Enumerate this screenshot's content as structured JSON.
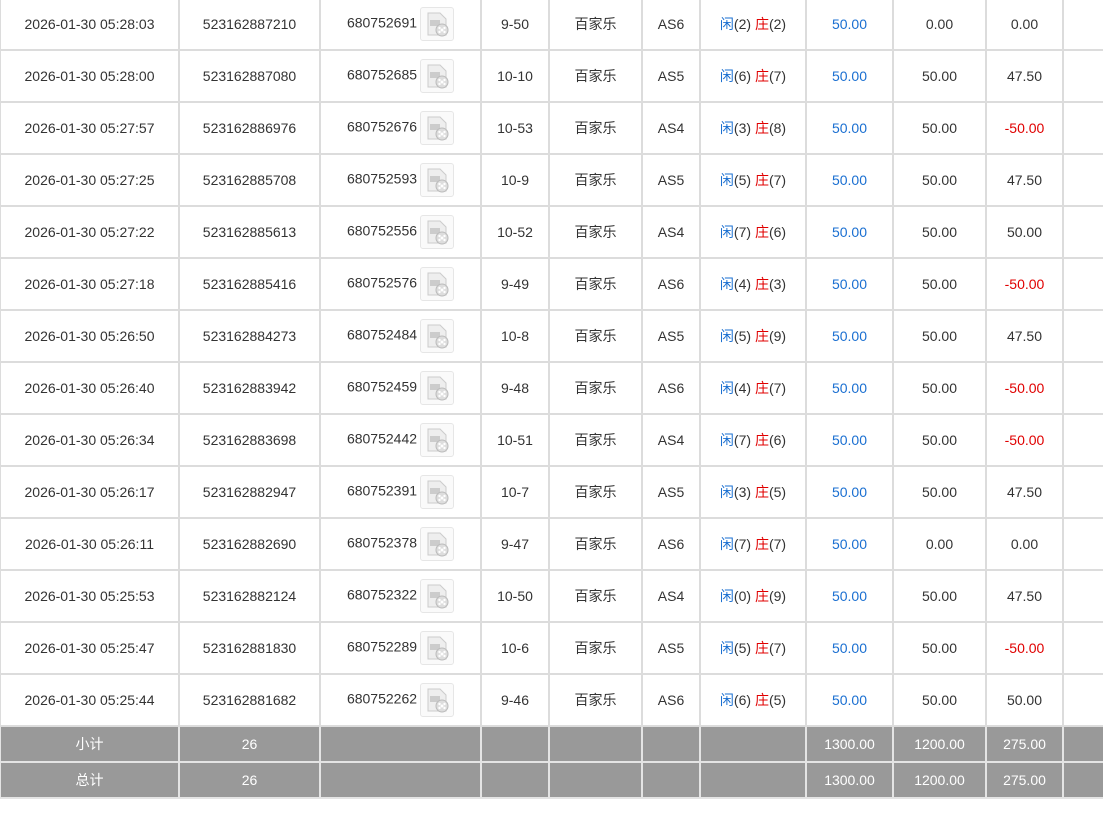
{
  "rows": [
    {
      "time": "2026-01-30 05:28:03",
      "bet_id": "523162887210",
      "round_id": "680752691",
      "shoe": "9-50",
      "game": "百家乐",
      "table": "AS6",
      "player": "(2)",
      "banker": "(2)",
      "bet": "50.00",
      "valid": "0.00",
      "win": "0.00"
    },
    {
      "time": "2026-01-30 05:28:00",
      "bet_id": "523162887080",
      "round_id": "680752685",
      "shoe": "10-10",
      "game": "百家乐",
      "table": "AS5",
      "player": "(6)",
      "banker": "(7)",
      "bet": "50.00",
      "valid": "50.00",
      "win": "47.50"
    },
    {
      "time": "2026-01-30 05:27:57",
      "bet_id": "523162886976",
      "round_id": "680752676",
      "shoe": "10-53",
      "game": "百家乐",
      "table": "AS4",
      "player": "(3)",
      "banker": "(8)",
      "bet": "50.00",
      "valid": "50.00",
      "win": "-50.00"
    },
    {
      "time": "2026-01-30 05:27:25",
      "bet_id": "523162885708",
      "round_id": "680752593",
      "shoe": "10-9",
      "game": "百家乐",
      "table": "AS5",
      "player": "(5)",
      "banker": "(7)",
      "bet": "50.00",
      "valid": "50.00",
      "win": "47.50"
    },
    {
      "time": "2026-01-30 05:27:22",
      "bet_id": "523162885613",
      "round_id": "680752556",
      "shoe": "10-52",
      "game": "百家乐",
      "table": "AS4",
      "player": "(7)",
      "banker": "(6)",
      "bet": "50.00",
      "valid": "50.00",
      "win": "50.00"
    },
    {
      "time": "2026-01-30 05:27:18",
      "bet_id": "523162885416",
      "round_id": "680752576",
      "shoe": "9-49",
      "game": "百家乐",
      "table": "AS6",
      "player": "(4)",
      "banker": "(3)",
      "bet": "50.00",
      "valid": "50.00",
      "win": "-50.00"
    },
    {
      "time": "2026-01-30 05:26:50",
      "bet_id": "523162884273",
      "round_id": "680752484",
      "shoe": "10-8",
      "game": "百家乐",
      "table": "AS5",
      "player": "(5)",
      "banker": "(9)",
      "bet": "50.00",
      "valid": "50.00",
      "win": "47.50"
    },
    {
      "time": "2026-01-30 05:26:40",
      "bet_id": "523162883942",
      "round_id": "680752459",
      "shoe": "9-48",
      "game": "百家乐",
      "table": "AS6",
      "player": "(4)",
      "banker": "(7)",
      "bet": "50.00",
      "valid": "50.00",
      "win": "-50.00"
    },
    {
      "time": "2026-01-30 05:26:34",
      "bet_id": "523162883698",
      "round_id": "680752442",
      "shoe": "10-51",
      "game": "百家乐",
      "table": "AS4",
      "player": "(7)",
      "banker": "(6)",
      "bet": "50.00",
      "valid": "50.00",
      "win": "-50.00"
    },
    {
      "time": "2026-01-30 05:26:17",
      "bet_id": "523162882947",
      "round_id": "680752391",
      "shoe": "10-7",
      "game": "百家乐",
      "table": "AS5",
      "player": "(3)",
      "banker": "(5)",
      "bet": "50.00",
      "valid": "50.00",
      "win": "47.50"
    },
    {
      "time": "2026-01-30 05:26:11",
      "bet_id": "523162882690",
      "round_id": "680752378",
      "shoe": "9-47",
      "game": "百家乐",
      "table": "AS6",
      "player": "(7)",
      "banker": "(7)",
      "bet": "50.00",
      "valid": "0.00",
      "win": "0.00"
    },
    {
      "time": "2026-01-30 05:25:53",
      "bet_id": "523162882124",
      "round_id": "680752322",
      "shoe": "10-50",
      "game": "百家乐",
      "table": "AS4",
      "player": "(0)",
      "banker": "(9)",
      "bet": "50.00",
      "valid": "50.00",
      "win": "47.50"
    },
    {
      "time": "2026-01-30 05:25:47",
      "bet_id": "523162881830",
      "round_id": "680752289",
      "shoe": "10-6",
      "game": "百家乐",
      "table": "AS5",
      "player": "(5)",
      "banker": "(7)",
      "bet": "50.00",
      "valid": "50.00",
      "win": "-50.00"
    },
    {
      "time": "2026-01-30 05:25:44",
      "bet_id": "523162881682",
      "round_id": "680752262",
      "shoe": "9-46",
      "game": "百家乐",
      "table": "AS6",
      "player": "(6)",
      "banker": "(5)",
      "bet": "50.00",
      "valid": "50.00",
      "win": "50.00"
    }
  ],
  "labels": {
    "player": "闲",
    "banker": "庄"
  },
  "icon": "video-file-icon",
  "summary": [
    {
      "label": "小计",
      "count": "26",
      "bet": "1300.00",
      "valid": "1200.00",
      "win": "275.00"
    },
    {
      "label": "总计",
      "count": "26",
      "bet": "1300.00",
      "valid": "1200.00",
      "win": "275.00"
    }
  ],
  "colors": {
    "blue": "#1a6fd1",
    "red": "#e00000",
    "summary_bg": "#999999"
  }
}
